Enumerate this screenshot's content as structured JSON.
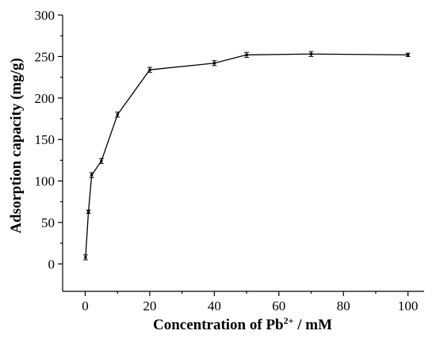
{
  "chart_data": {
    "type": "line",
    "xlabel": "Concentration of Pb",
    "xlabel_sup": "2+",
    "xlabel_suffix": " / mM",
    "ylabel": "Adsorption capacity (mg/g)",
    "xlim": [
      -7,
      105
    ],
    "ylim": [
      -33,
      300
    ],
    "xticks": [
      0,
      20,
      40,
      60,
      80,
      100
    ],
    "yticks": [
      0,
      50,
      100,
      150,
      200,
      250,
      300
    ],
    "grid": false,
    "series": [
      {
        "x": [
          0.1,
          1,
          2,
          5,
          10,
          20,
          40,
          50,
          70,
          100
        ],
        "values": [
          8,
          63,
          107,
          124,
          180,
          234,
          242,
          252,
          253,
          252
        ],
        "errors": [
          3,
          2,
          3,
          3,
          3,
          3,
          3,
          3,
          3,
          2
        ]
      }
    ]
  }
}
